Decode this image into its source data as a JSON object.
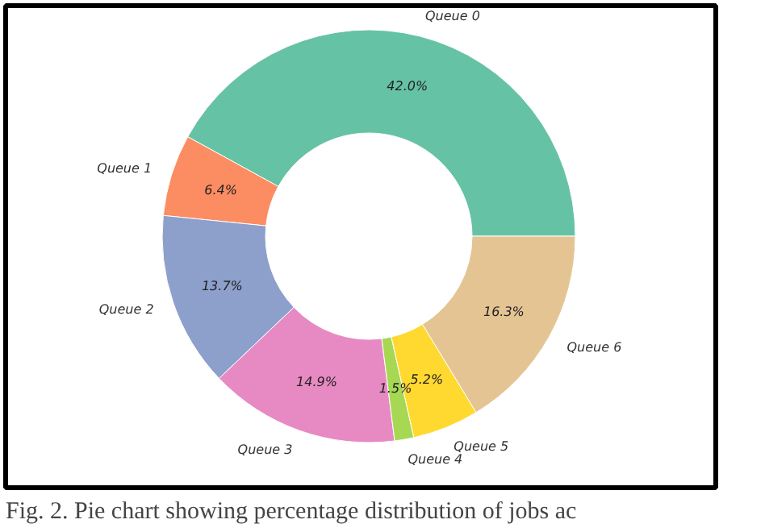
{
  "chart_data": {
    "type": "donut",
    "categories": [
      "Queue 0",
      "Queue 1",
      "Queue 2",
      "Queue 3",
      "Queue 4",
      "Queue 5",
      "Queue 6"
    ],
    "values": [
      42.0,
      6.4,
      13.7,
      14.9,
      1.5,
      5.2,
      16.3
    ],
    "colors": [
      "#66c2a5",
      "#fc8d62",
      "#8da0cb",
      "#e78ac3",
      "#a6d854",
      "#ffd92f",
      "#e5c494"
    ],
    "value_labels": [
      "42.0%",
      "6.4%",
      "13.7%",
      "14.9%",
      "1.5%",
      "5.2%",
      "16.3%"
    ],
    "annotations": [
      "Fig. 2.  Pie chart showing percentage distribution of jobs ac"
    ]
  }
}
